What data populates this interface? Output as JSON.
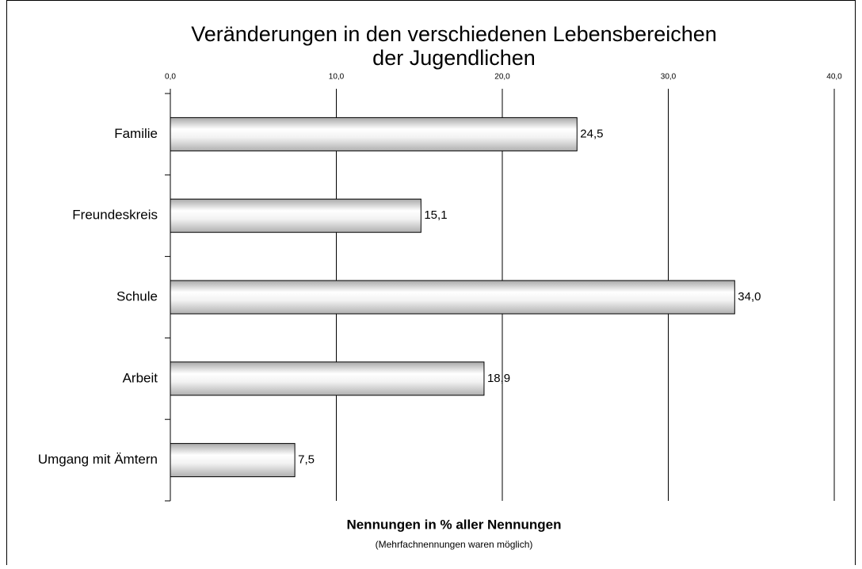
{
  "chart_data": {
    "type": "barh",
    "title": [
      "Veränderungen in den verschiedenen Lebensbereichen",
      "der Jugendlichen"
    ],
    "x_axis_label": "Nennungen in % aller Nennungen",
    "x_axis_note": "(Mehrfachnennungen waren möglich)",
    "categories": [
      "Familie",
      "Freundeskreis",
      "Schule",
      "Arbeit",
      "Umgang mit Ämtern"
    ],
    "values": [
      24.5,
      15.1,
      34.0,
      18.9,
      7.5
    ],
    "value_labels": [
      "24,5",
      "15,1",
      "34,0",
      "18,9",
      "7,5"
    ],
    "xlim": [
      0,
      40
    ],
    "xticks": [
      {
        "value": 0,
        "label": "0,0"
      },
      {
        "value": 10,
        "label": "10,0"
      },
      {
        "value": 20,
        "label": "20,0"
      },
      {
        "value": 30,
        "label": "30,0"
      },
      {
        "value": 40,
        "label": "40,0"
      }
    ],
    "grid": true
  }
}
